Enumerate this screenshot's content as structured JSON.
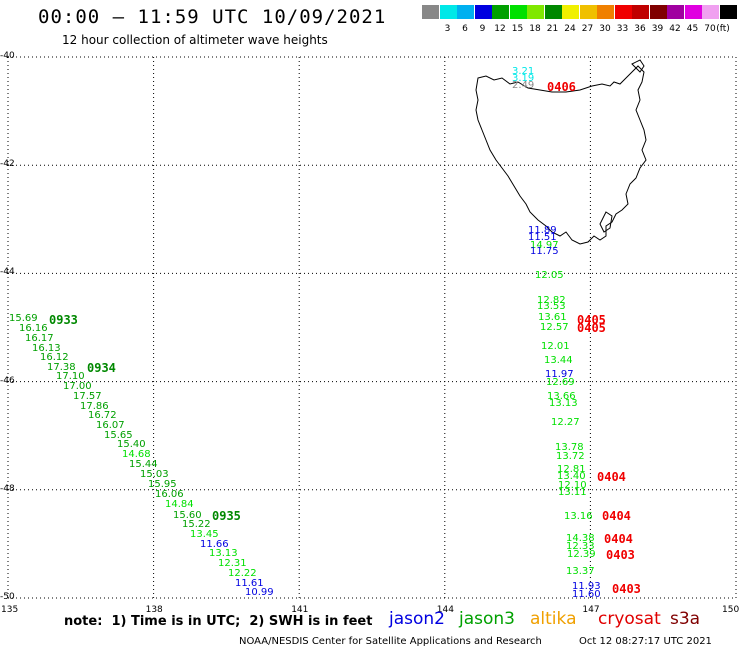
{
  "header": {
    "title": "00:00 – 11:59 UTC 10/09/2021",
    "subtitle": "12 hour collection of altimeter wave heights"
  },
  "legend": {
    "unit": "(ft)",
    "swatches": [
      {
        "color": "#888888",
        "tick": ""
      },
      {
        "color": "#00e8e8",
        "tick": "3"
      },
      {
        "color": "#00b0f0",
        "tick": "6"
      },
      {
        "color": "#0000e0",
        "tick": "9"
      },
      {
        "color": "#00a000",
        "tick": "12"
      },
      {
        "color": "#00e000",
        "tick": "15"
      },
      {
        "color": "#80e800",
        "tick": "18"
      },
      {
        "color": "#008800",
        "tick": "21"
      },
      {
        "color": "#f0f000",
        "tick": "24"
      },
      {
        "color": "#f0c000",
        "tick": "27"
      },
      {
        "color": "#f08000",
        "tick": "30"
      },
      {
        "color": "#f00000",
        "tick": "33"
      },
      {
        "color": "#c00000",
        "tick": "36"
      },
      {
        "color": "#800000",
        "tick": "39"
      },
      {
        "color": "#a000a0",
        "tick": "42"
      },
      {
        "color": "#e000e0",
        "tick": "45"
      },
      {
        "color": "#f0a0f0",
        "tick": "70"
      },
      {
        "color": "#000000",
        "tick": ""
      }
    ]
  },
  "axes": {
    "lat_labels": [
      "-40",
      "-42",
      "-44",
      "-46",
      "-48",
      "-50"
    ],
    "lon_labels": [
      "135",
      "138",
      "141",
      "144",
      "147",
      "150"
    ],
    "lat_range": [
      -50,
      -40
    ],
    "lon_range": [
      135,
      150
    ]
  },
  "observations": {
    "track_west": [
      {
        "v": "15.69",
        "c": "#00a000"
      },
      {
        "v": "16.16",
        "c": "#00a000"
      },
      {
        "v": "16.17",
        "c": "#00a000"
      },
      {
        "v": "16.13",
        "c": "#00a000"
      },
      {
        "v": "16.12",
        "c": "#00a000"
      },
      {
        "v": "17.38",
        "c": "#00a000"
      },
      {
        "v": "17.10",
        "c": "#00a000"
      },
      {
        "v": "17.00",
        "c": "#00a000"
      },
      {
        "v": "17.57",
        "c": "#00a000"
      },
      {
        "v": "17.86",
        "c": "#00a000"
      },
      {
        "v": "16.72",
        "c": "#00a000"
      },
      {
        "v": "16.07",
        "c": "#00a000"
      },
      {
        "v": "15.65",
        "c": "#00a000"
      },
      {
        "v": "15.40",
        "c": "#00a000"
      },
      {
        "v": "14.68",
        "c": "#00e000"
      },
      {
        "v": "15.44",
        "c": "#00a000"
      },
      {
        "v": "15.03",
        "c": "#00a000"
      },
      {
        "v": "15.95",
        "c": "#00a000"
      },
      {
        "v": "16.06",
        "c": "#00a000"
      },
      {
        "v": "14.84",
        "c": "#00e000"
      },
      {
        "v": "15.60",
        "c": "#00a000"
      },
      {
        "v": "15.22",
        "c": "#00a000"
      },
      {
        "v": "13.45",
        "c": "#00e000"
      },
      {
        "v": "11.66",
        "c": "#0000e0"
      },
      {
        "v": "13.13",
        "c": "#00e000"
      },
      {
        "v": "12.31",
        "c": "#00e000"
      },
      {
        "v": "12.22",
        "c": "#00e000"
      },
      {
        "v": "11.61",
        "c": "#0000e0"
      },
      {
        "v": "10.99",
        "c": "#0000e0"
      }
    ],
    "track_west_times": [
      {
        "t": "0933",
        "c": "#008800"
      },
      {
        "t": "0934",
        "c": "#008800"
      },
      {
        "t": "0935",
        "c": "#008800"
      }
    ],
    "track_east": [
      {
        "v": "3.21",
        "c": "#00e8e8"
      },
      {
        "v": "3.19",
        "c": "#00e8e8"
      },
      {
        "v": "2.49",
        "c": "#888888"
      },
      {
        "v": "11.89",
        "c": "#0000e0"
      },
      {
        "v": "11.51",
        "c": "#0000e0"
      },
      {
        "v": "14.97",
        "c": "#00e000"
      },
      {
        "v": "11.75",
        "c": "#0000e0"
      },
      {
        "v": "12.05",
        "c": "#00e000"
      },
      {
        "v": "12.82",
        "c": "#00e000"
      },
      {
        "v": "13.53",
        "c": "#00e000"
      },
      {
        "v": "13.61",
        "c": "#00e000"
      },
      {
        "v": "12.57",
        "c": "#00e000"
      },
      {
        "v": "12.01",
        "c": "#00e000"
      },
      {
        "v": "13.44",
        "c": "#00e000"
      },
      {
        "v": "11.97",
        "c": "#0000e0"
      },
      {
        "v": "12.69",
        "c": "#00e000"
      },
      {
        "v": "13.66",
        "c": "#00e000"
      },
      {
        "v": "13.13",
        "c": "#00e000"
      },
      {
        "v": "12.27",
        "c": "#00e000"
      },
      {
        "v": "13.78",
        "c": "#00e000"
      },
      {
        "v": "13.72",
        "c": "#00e000"
      },
      {
        "v": "12.81",
        "c": "#00e000"
      },
      {
        "v": "13.40",
        "c": "#00e000"
      },
      {
        "v": "12.10",
        "c": "#00e000"
      },
      {
        "v": "13.11",
        "c": "#00e000"
      },
      {
        "v": "13.16",
        "c": "#00e000"
      },
      {
        "v": "14.38",
        "c": "#00e000"
      },
      {
        "v": "12.33",
        "c": "#00e000"
      },
      {
        "v": "12.39",
        "c": "#00e000"
      },
      {
        "v": "13.37",
        "c": "#00e000"
      },
      {
        "v": "11.93",
        "c": "#0000e0"
      },
      {
        "v": "11.60",
        "c": "#0000e0"
      }
    ],
    "track_east_times": [
      {
        "t": "0406",
        "c": "#f00000"
      },
      {
        "t": "0405",
        "c": "#f00000"
      },
      {
        "t": "0405",
        "c": "#f00000"
      },
      {
        "t": "0404",
        "c": "#f00000"
      },
      {
        "t": "0404",
        "c": "#f00000"
      },
      {
        "t": "0404",
        "c": "#f00000"
      },
      {
        "t": "0403",
        "c": "#f00000"
      },
      {
        "t": "0403",
        "c": "#f00000"
      }
    ]
  },
  "footer": {
    "note": "note:  1) Time is in UTC;  2) SWH is in feet",
    "satellites": [
      {
        "name": "jason2",
        "color": "#0000e0"
      },
      {
        "name": "jason3",
        "color": "#00a000"
      },
      {
        "name": "altika",
        "color": "#f0a000"
      },
      {
        "name": "cryosat",
        "color": "#e00000"
      },
      {
        "name": "s3a",
        "color": "#800000"
      }
    ],
    "credit": "NOAA/NESDIS Center for Satellite Applications and Research",
    "timestamp": "Oct 12 08:27:17 UTC 2021"
  }
}
